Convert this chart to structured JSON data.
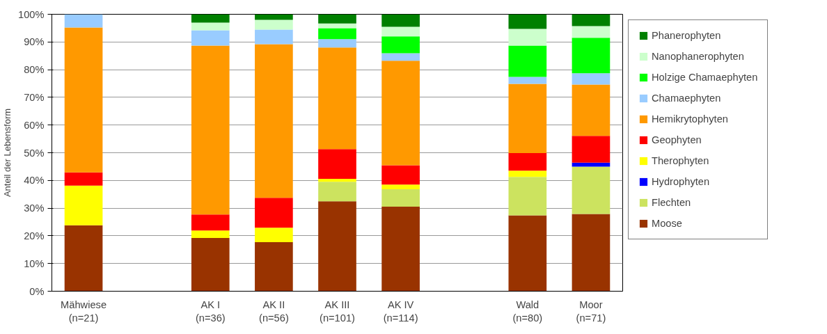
{
  "chart_data": {
    "type": "bar",
    "stacked": true,
    "ylabel": "Anteil der Lebensform",
    "categories": [
      "Mähwiese\n(n=21)",
      null,
      "AK I\n(n=36)",
      "AK II\n(n=56)",
      "AK III\n(n=101)",
      "AK IV\n(n=114)",
      null,
      "Wald\n(n=80)",
      "Moor\n(n=71)"
    ],
    "series": [
      {
        "name": "Moose",
        "color": "#993300",
        "values": [
          23.8,
          null,
          19.2,
          17.7,
          32.5,
          30.5,
          null,
          27.4,
          27.9
        ]
      },
      {
        "name": "Flechten",
        "color": "#cce35f",
        "values": [
          null,
          null,
          null,
          null,
          7.0,
          6.3,
          null,
          13.9,
          17.1
        ]
      },
      {
        "name": "Hydrophyten",
        "color": "#0000ff",
        "values": [
          null,
          null,
          null,
          null,
          null,
          null,
          null,
          null,
          1.4
        ]
      },
      {
        "name": "Therophyten",
        "color": "#ffff00",
        "values": [
          14.3,
          null,
          2.7,
          5.2,
          1.1,
          1.7,
          null,
          2.2,
          null
        ]
      },
      {
        "name": "Geophyten",
        "color": "#ff0000",
        "values": [
          4.8,
          null,
          5.8,
          10.8,
          10.7,
          7.0,
          null,
          6.4,
          9.7
        ]
      },
      {
        "name": "Hemikrytophyten",
        "color": "#ff9900",
        "values": [
          52.3,
          null,
          61.0,
          55.5,
          36.7,
          37.7,
          null,
          25.0,
          18.5
        ]
      },
      {
        "name": "Chamaephyten",
        "color": "#99ccff",
        "values": [
          4.8,
          null,
          5.5,
          5.3,
          3.0,
          2.7,
          null,
          2.5,
          4.1
        ]
      },
      {
        "name": "Holzige Chamaephyten",
        "color": "#00ff00",
        "values": [
          null,
          null,
          null,
          null,
          4.0,
          6.1,
          null,
          11.3,
          12.8
        ]
      },
      {
        "name": "Nanophanerophyten",
        "color": "#ccffcc",
        "values": [
          null,
          null,
          2.8,
          3.5,
          1.7,
          3.5,
          null,
          6.0,
          4.2
        ]
      },
      {
        "name": "Phanerophyten",
        "color": "#008000",
        "values": [
          null,
          null,
          3.0,
          2.0,
          3.3,
          4.5,
          null,
          5.3,
          4.3
        ]
      }
    ],
    "ylim": [
      0,
      100
    ],
    "yticks": [
      {
        "value": 0,
        "label": "0%"
      },
      {
        "value": 10,
        "label": "10%"
      },
      {
        "value": 20,
        "label": "20%"
      },
      {
        "value": 30,
        "label": "30%"
      },
      {
        "value": 40,
        "label": "40%"
      },
      {
        "value": 50,
        "label": "50%"
      },
      {
        "value": 60,
        "label": "60%"
      },
      {
        "value": 70,
        "label": "70%"
      },
      {
        "value": 80,
        "label": "80%"
      },
      {
        "value": 90,
        "label": "90%"
      },
      {
        "value": 100,
        "label": "100%"
      }
    ],
    "grid": "y",
    "legend": "right"
  }
}
